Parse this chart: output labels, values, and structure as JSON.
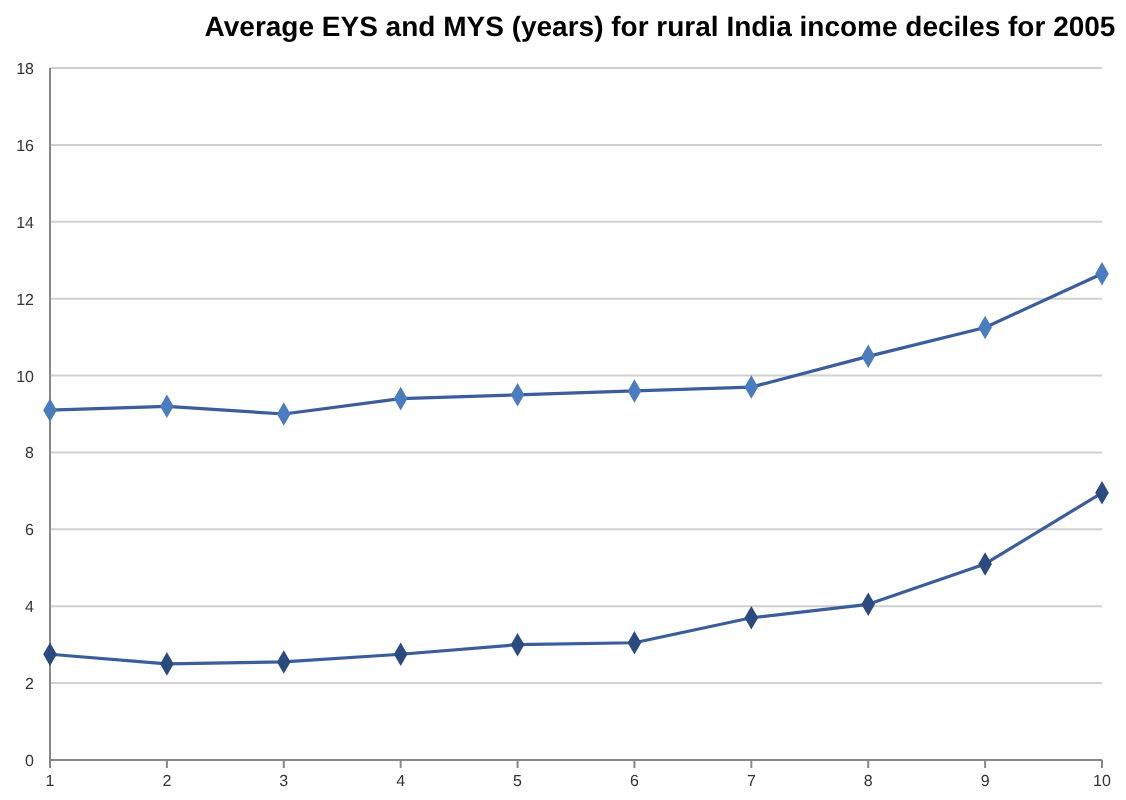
{
  "chart_data": {
    "type": "line",
    "title": "Average EYS and MYS (years) for rural India income deciles for 2005",
    "x": [
      1,
      2,
      3,
      4,
      5,
      6,
      7,
      8,
      9,
      10
    ],
    "series": [
      {
        "color": "#4a7cc0",
        "values": [
          9.1,
          9.2,
          9.0,
          9.4,
          9.5,
          9.6,
          9.7,
          10.5,
          11.25,
          12.65
        ]
      },
      {
        "color": "#2a4a80",
        "values": [
          2.75,
          2.5,
          2.55,
          2.75,
          3.0,
          3.05,
          3.7,
          4.05,
          5.1,
          6.95
        ]
      }
    ],
    "xlim": [
      1,
      10
    ],
    "xticks": [
      1,
      2,
      3,
      4,
      5,
      6,
      7,
      8,
      9,
      10
    ],
    "ylim": [
      0,
      18
    ],
    "yticks": [
      0,
      2,
      4,
      6,
      8,
      10,
      12,
      14,
      16,
      18
    ],
    "grid": "y",
    "marker": "diamond",
    "line_style": "solid"
  }
}
